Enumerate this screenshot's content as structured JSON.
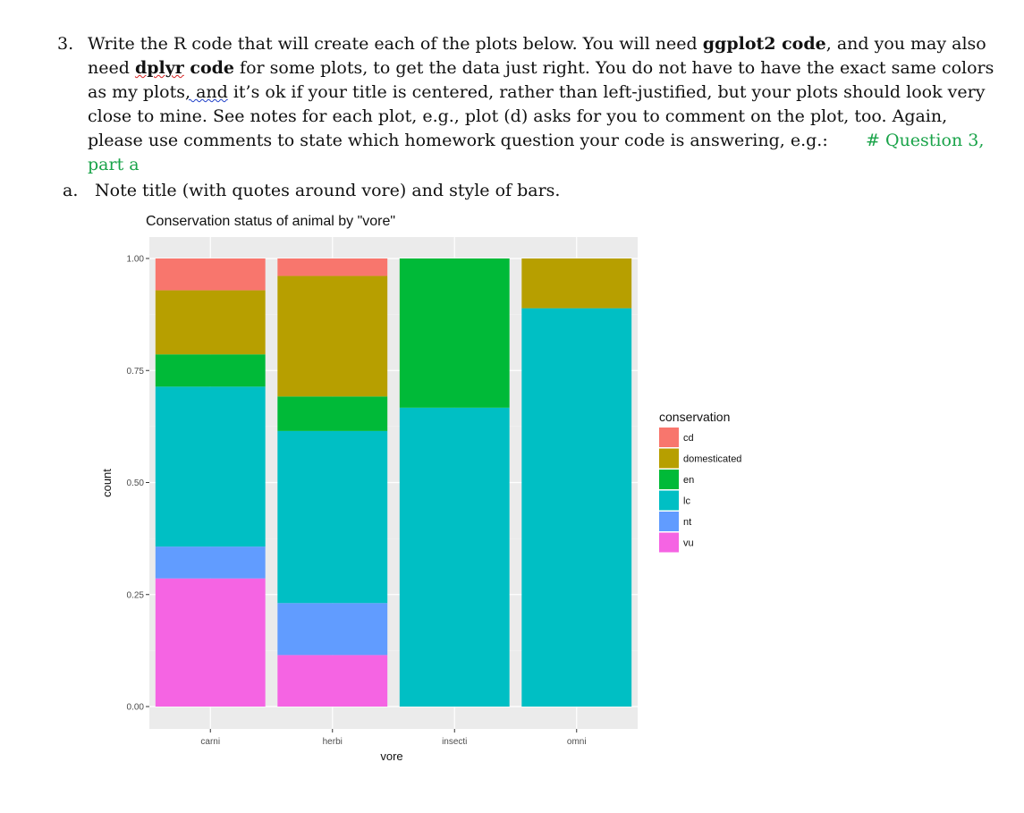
{
  "question": {
    "number": "3.",
    "text_1": "Write the R code that will create each of the plots below.  You will need ",
    "bold_1": "ggplot2 code",
    "text_2": ", and you may also need ",
    "bold_2a": "dplyr",
    "bold_2b": " code",
    "text_3": " for some plots, to get the data just right.  You do not have to have the exact same colors as my plots",
    "text_3b": ", and",
    "text_4": " it’s ok if your title is centered, rather than left-justified, but your plots should look very close to mine.   See notes for each plot, e.g., plot (d) asks for you to comment on the plot, too.  Again, please use comments to state which homework question your code is answering, e.g.:",
    "code_example": "# Question 3, part a"
  },
  "part_a": {
    "label": "a.",
    "text": "Note title (with quotes around vore) and style of bars."
  },
  "chart_data": {
    "type": "bar",
    "stacked": true,
    "title": "Conservation status of animal by \"vore\"",
    "xlabel": "vore",
    "ylabel": "count",
    "ylim": [
      0,
      1
    ],
    "yticks": [
      "0.00",
      "0.25",
      "0.50",
      "0.75",
      "1.00"
    ],
    "categories": [
      "carni",
      "herbi",
      "insecti",
      "omni"
    ],
    "legend_title": "conservation",
    "legend_position": "right",
    "series": [
      {
        "name": "vu",
        "color": "#F564E3",
        "values": [
          0.286,
          0.115,
          0,
          0
        ]
      },
      {
        "name": "nt",
        "color": "#619CFF",
        "values": [
          0.071,
          0.116,
          0,
          0
        ]
      },
      {
        "name": "lc",
        "color": "#00BFC4",
        "values": [
          0.357,
          0.384,
          0.667,
          0.889
        ]
      },
      {
        "name": "en",
        "color": "#00BA38",
        "values": [
          0.072,
          0.077,
          0.333,
          0
        ]
      },
      {
        "name": "domesticated",
        "color": "#B79F00",
        "values": [
          0.143,
          0.269,
          0,
          0.111
        ]
      },
      {
        "name": "cd",
        "color": "#F8766D",
        "values": [
          0.071,
          0.039,
          0,
          0
        ]
      }
    ],
    "legend_order": [
      "cd",
      "domesticated",
      "en",
      "lc",
      "nt",
      "vu"
    ],
    "grid": true
  }
}
